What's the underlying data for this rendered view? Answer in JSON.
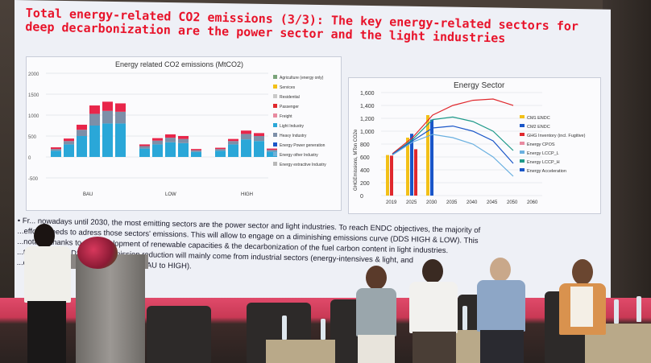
{
  "slide": {
    "title_line1": "Total energy-related CO2 emissions (3/3): The key energy-related sectors for",
    "title_line2": "deep decarbonization are the power sector and the light industries",
    "left_chart_title": "Energy related CO2 emissions (MtCO2)",
    "right_chart_title": "Energy Sector",
    "bullet_line1": "• Fr... nowadays until 2030, the most emitting sectors are the power sector and light industries. To reach ENDC objectives, the majority of",
    "bullet_line2": "  ...efforts needs to adress those sectors' emissions. This will allow to engage on a diminishing emissions curve (DDS HIGH & LOW). This",
    "bullet_line3": "  ...notably thanks to the development of renewable capacities & the decarbonization of the fuel carbon content in light industries.",
    "bullet_line4": "  ...te is higher (DDS HIGH), emission reduction will mainly come from industrial sectors (energy-intensives & light, and",
    "bullet_line5": "  ...d less from the power sector (from BAU to HIGH)."
  },
  "chart_data": [
    {
      "type": "bar",
      "title": "Energy related CO2 emissions (MtCO2)",
      "ylim": [
        -500,
        2000
      ],
      "yticks": [
        "2000",
        "1500",
        "1000",
        "500",
        "0",
        "-500"
      ],
      "groups": [
        "BAU",
        "LOW",
        "HIGH"
      ],
      "legend": [
        "Agriculture (energy only)",
        "Services",
        "Residential",
        "Passenger",
        "Freight",
        "Light Industry",
        "Heavy Industry",
        "Energy Power generation",
        "Energy other Industry",
        "Energy extractive Industry"
      ],
      "series_colors": [
        "#2aa7d8",
        "#7d8fa8",
        "#e8264a"
      ],
      "stacks": [
        [
          [
            150,
            40,
            40
          ],
          [
            300,
            80,
            60
          ],
          [
            500,
            150,
            120
          ],
          [
            750,
            280,
            200
          ],
          [
            800,
            300,
            220
          ],
          [
            800,
            280,
            200
          ]
        ],
        [
          [
            200,
            60,
            40
          ],
          [
            300,
            90,
            60
          ],
          [
            350,
            110,
            80
          ],
          [
            330,
            100,
            70
          ],
          [
            120,
            40,
            30
          ]
        ],
        [
          [
            150,
            40,
            30
          ],
          [
            300,
            80,
            50
          ],
          [
            420,
            130,
            80
          ],
          [
            380,
            120,
            70
          ],
          [
            130,
            40,
            30
          ]
        ]
      ]
    },
    {
      "type": "line",
      "title": "Energy Sector",
      "ylabel": "GHGEmissions, MTon CO2e",
      "ylim": [
        0,
        1600
      ],
      "yticks": [
        "1,600",
        "1,400",
        "1,200",
        "1,000",
        "800",
        "600",
        "400",
        "200",
        "0"
      ],
      "x": [
        "2019",
        "2025",
        "2030",
        "2035",
        "2040",
        "2045",
        "2050",
        "2060"
      ],
      "legend": [
        "CM1 ENDC",
        "CM2 ENDC",
        "GHG Inventory (incl. Fugitive)",
        "Energy CPOS",
        "Energy LCCP_L",
        "Energy LCCP_H",
        "Energy Acceleration"
      ],
      "bars": {
        "2019": [
          {
            "c": "#f2c018",
            "v": 630
          },
          {
            "c": "#e0282d",
            "v": 620
          }
        ],
        "2025": [
          {
            "c": "#f2c018",
            "v": 900
          },
          {
            "c": "#1a56c8",
            "v": 960
          },
          {
            "c": "#e0282d",
            "v": 720
          }
        ],
        "2030": [
          {
            "c": "#f2c018",
            "v": 1250
          },
          {
            "c": "#1a56c8",
            "v": 1180
          }
        ]
      },
      "series": [
        {
          "color": "#e0282d",
          "values": [
            650,
            900,
            1250,
            1400,
            1480,
            1500,
            1400,
            null
          ]
        },
        {
          "color": "#1f9a8a",
          "values": [
            640,
            870,
            1180,
            1220,
            1150,
            1000,
            700,
            null
          ]
        },
        {
          "color": "#1a56c8",
          "values": [
            640,
            850,
            1050,
            1080,
            1000,
            850,
            500,
            null
          ]
        },
        {
          "color": "#6ab0e0",
          "values": [
            630,
            830,
            950,
            900,
            800,
            600,
            300,
            null
          ]
        }
      ]
    }
  ],
  "people": {
    "count": 5
  }
}
